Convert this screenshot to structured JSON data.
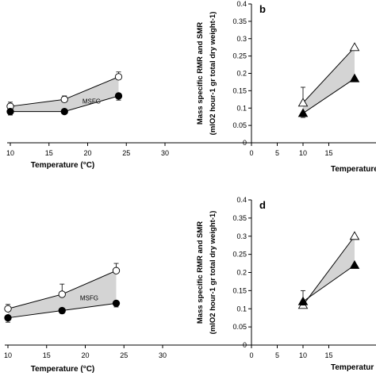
{
  "chart_data": [
    {
      "id": "a",
      "type": "line",
      "panel_label": "",
      "xlabel": "Temperature (°C)",
      "xticks": [
        10,
        15,
        20,
        25,
        30
      ],
      "xlim": [
        10,
        30
      ],
      "ylim": [
        0,
        0.4
      ],
      "area_label": "MSFG",
      "series": [
        {
          "role": "rmr",
          "marker": "open-circle",
          "x": [
            10,
            17,
            24
          ],
          "y": [
            0.105,
            0.125,
            0.19
          ],
          "err": [
            0.012,
            0.01,
            0.014
          ]
        },
        {
          "role": "smr",
          "marker": "filled-circle",
          "x": [
            10,
            17,
            24
          ],
          "y": [
            0.09,
            0.09,
            0.135
          ],
          "err": [
            0.01,
            0.005,
            0.012
          ]
        }
      ]
    },
    {
      "id": "b",
      "type": "line",
      "panel_label": "b",
      "xlabel": "Temperature",
      "ylabel": "Mass specific RMR and SMR",
      "ylabel2": "(mlO2 hour-1 gr total dry weight-1)",
      "xticks": [
        0,
        5,
        10,
        15
      ],
      "xlim": [
        0,
        30
      ],
      "yticks": [
        0,
        0.05,
        0.1,
        0.15,
        0.2,
        0.25,
        0.3,
        0.35,
        0.4
      ],
      "ytick_labels": [
        "0",
        "0.05",
        "0.1",
        "0.15",
        "0.2",
        "0.25",
        "0.3",
        "0.35",
        "0.4"
      ],
      "ylim": [
        0,
        0.4
      ],
      "series": [
        {
          "role": "rmr",
          "marker": "open-triangle",
          "x": [
            10,
            20
          ],
          "y": [
            0.115,
            0.275
          ],
          "err": [
            0.045,
            0
          ]
        },
        {
          "role": "smr",
          "marker": "filled-triangle",
          "x": [
            10,
            20
          ],
          "y": [
            0.085,
            0.185
          ],
          "err": [
            0.012,
            0
          ]
        }
      ]
    },
    {
      "id": "c",
      "type": "line",
      "panel_label": "",
      "xlabel": "Temperature (°C)",
      "xticks": [
        10,
        15,
        20,
        25,
        30
      ],
      "xlim": [
        10,
        30
      ],
      "ylim": [
        0,
        0.4
      ],
      "area_label": "MSFG",
      "series": [
        {
          "role": "rmr",
          "marker": "open-circle",
          "x": [
            10,
            17,
            24
          ],
          "y": [
            0.1,
            0.14,
            0.205
          ],
          "err": [
            0.012,
            0.028,
            0.02
          ]
        },
        {
          "role": "smr",
          "marker": "filled-circle",
          "x": [
            10,
            17,
            24
          ],
          "y": [
            0.075,
            0.095,
            0.115
          ],
          "err": [
            0.012,
            0.008,
            0.01
          ]
        }
      ]
    },
    {
      "id": "d",
      "type": "line",
      "panel_label": "d",
      "xlabel": "Temperatur",
      "ylabel": "Mass specific RMR and SMR",
      "ylabel2": "(mlO2 hour-1 gr total dry weight-1)",
      "xticks": [
        0,
        5,
        10,
        15
      ],
      "xlim": [
        0,
        30
      ],
      "yticks": [
        0,
        0.05,
        0.1,
        0.15,
        0.2,
        0.25,
        0.3,
        0.35,
        0.4
      ],
      "ytick_labels": [
        "0",
        "0.05",
        "0.1",
        "0.15",
        "0.2",
        "0.25",
        "0.3",
        "0.35",
        "0.4"
      ],
      "ylim": [
        0,
        0.4
      ],
      "series": [
        {
          "role": "rmr",
          "marker": "open-triangle",
          "x": [
            10,
            20
          ],
          "y": [
            0.11,
            0.3
          ],
          "err": [
            0.04,
            0
          ]
        },
        {
          "role": "smr",
          "marker": "filled-triangle",
          "x": [
            10,
            20
          ],
          "y": [
            0.12,
            0.22
          ],
          "err": [
            0.01,
            0
          ]
        }
      ]
    }
  ]
}
